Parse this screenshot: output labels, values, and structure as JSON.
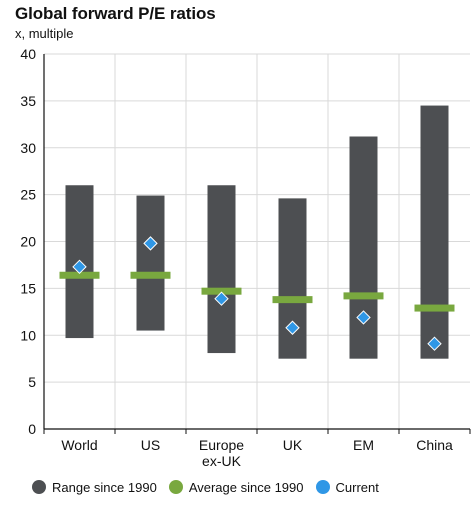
{
  "colors": {
    "range": "#4d4f52",
    "average": "#79a83f",
    "current": "#2f97e6",
    "grid": "#d9d9d9",
    "axis": "#111111"
  },
  "chart_data": {
    "type": "bar",
    "title": "Global forward P/E ratios",
    "subtitle": "x, multiple",
    "xlabel": "",
    "ylabel": "",
    "ylim": [
      0,
      40
    ],
    "yticks": [
      0,
      5,
      10,
      15,
      20,
      25,
      30,
      35,
      40
    ],
    "grid": true,
    "legend_position": "bottom",
    "categories": [
      [
        "World"
      ],
      [
        "US"
      ],
      [
        "Europe",
        "ex-UK"
      ],
      [
        "UK"
      ],
      [
        "EM"
      ],
      [
        "China"
      ]
    ],
    "series": [
      {
        "name": "Range since 1990",
        "kind": "range",
        "low": [
          9.7,
          10.5,
          8.1,
          7.5,
          7.5,
          7.5
        ],
        "high": [
          26.0,
          24.9,
          26.0,
          24.6,
          31.2,
          34.5
        ]
      },
      {
        "name": "Average since 1990",
        "kind": "average",
        "values": [
          16.4,
          16.4,
          14.7,
          13.8,
          14.2,
          12.9
        ]
      },
      {
        "name": "Current",
        "kind": "current",
        "values": [
          17.3,
          19.8,
          13.9,
          10.8,
          11.9,
          9.1
        ]
      }
    ]
  }
}
